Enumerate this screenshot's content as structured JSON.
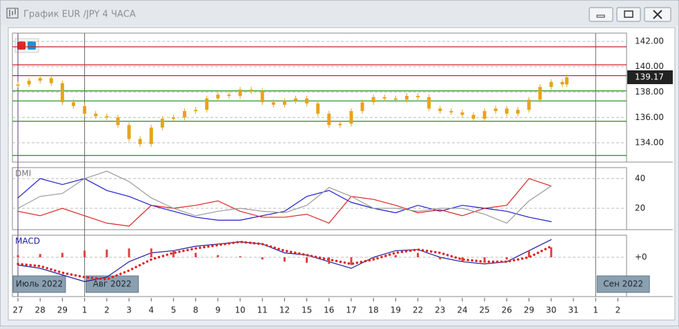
{
  "window": {
    "title": "График EUR /JPY  4 ЧАСА"
  },
  "x_axis": {
    "categories": [
      "27",
      "28",
      "29",
      "1",
      "2",
      "3",
      "4",
      "5",
      "8",
      "9",
      "10",
      "11",
      "12",
      "15",
      "16",
      "17",
      "18",
      "19",
      "22",
      "23",
      "24",
      "25",
      "26",
      "29",
      "30",
      "31",
      "1",
      "2"
    ],
    "months": [
      {
        "label": "Июль 2022",
        "index": 0
      },
      {
        "label": "Авг 2022",
        "index": 3
      },
      {
        "label": "Сен 2022",
        "index": 26
      }
    ]
  },
  "chart_data": [
    {
      "type": "candlestick",
      "color": "#e5a51a",
      "last_price": 139.17,
      "x": [
        0,
        0.5,
        1,
        1.5,
        2,
        2.5,
        3,
        3.5,
        4,
        4.5,
        5,
        5.5,
        6,
        6.5,
        7,
        7.5,
        8,
        8.5,
        9,
        9.5,
        10,
        10.5,
        11,
        11.5,
        12,
        12.5,
        13,
        13.5,
        14,
        14.5,
        15,
        15.5,
        16,
        16.5,
        17,
        17.5,
        18,
        18.5,
        19,
        19.5,
        20,
        20.5,
        21,
        21.5,
        22,
        22.5,
        23,
        23.5,
        24,
        24.5,
        24.7
      ],
      "values": [
        138.6,
        138.9,
        139.1,
        138.7,
        137.2,
        136.9,
        136.3,
        136.1,
        136.0,
        135.4,
        134.3,
        133.9,
        135.2,
        135.9,
        136.0,
        136.5,
        136.6,
        137.5,
        137.8,
        137.7,
        138.2,
        138.1,
        137.2,
        137.0,
        137.3,
        137.5,
        137.1,
        136.3,
        135.4,
        135.5,
        136.5,
        137.2,
        137.6,
        137.5,
        137.4,
        137.7,
        137.6,
        136.7,
        136.5,
        136.4,
        136.2,
        135.9,
        136.5,
        136.7,
        136.3,
        136.6,
        137.4,
        138.4,
        138.8,
        138.6,
        139.17
      ],
      "ylim": [
        132.48,
        142.65
      ],
      "yticks": [
        {
          "value": 142,
          "label": "142.00"
        },
        {
          "value": 140,
          "label": "140.00"
        },
        {
          "value": 138,
          "label": "138.00"
        },
        {
          "value": 136,
          "label": "136.00"
        },
        {
          "value": 134,
          "label": "134.00"
        }
      ],
      "levels": [
        {
          "value": 141.57,
          "color": "#cc2222"
        },
        {
          "value": 140.15,
          "color": "#cc2222"
        },
        {
          "value": 139.3,
          "color": "#cc2222"
        },
        {
          "value": 138.1,
          "color": "#2a9a2a"
        },
        {
          "value": 137.3,
          "color": "#2a9a2a"
        },
        {
          "value": 135.7,
          "color": "#2a9a2a"
        },
        {
          "value": 133.0,
          "color": "#2a9a2a"
        }
      ]
    },
    {
      "type": "line",
      "title": "DMI",
      "ylim": [
        5.6,
        47.4
      ],
      "yticks": [
        40,
        20
      ],
      "x": [
        0,
        1,
        2,
        3,
        4,
        5,
        6,
        7,
        8,
        9,
        10,
        11,
        12,
        13,
        14,
        15,
        16,
        17,
        18,
        19,
        20,
        21,
        22,
        23,
        24
      ],
      "series": [
        {
          "color": "#1a1acc",
          "values": [
            27,
            40,
            36,
            40,
            32,
            28,
            22,
            18,
            14,
            12,
            12,
            15,
            18,
            28,
            32,
            24,
            20,
            17,
            22,
            18,
            22,
            20,
            18,
            14,
            11
          ]
        },
        {
          "color": "#dd2222",
          "values": [
            18,
            15,
            20,
            15,
            10,
            8,
            22,
            20,
            22,
            25,
            18,
            14,
            14,
            16,
            10,
            28,
            26,
            22,
            17,
            19,
            15,
            20,
            22,
            40,
            35
          ]
        },
        {
          "color": "#999999",
          "values": [
            20,
            28,
            30,
            40,
            45,
            38,
            27,
            20,
            15,
            18,
            20,
            18,
            17,
            22,
            34,
            28,
            20,
            20,
            18,
            20,
            20,
            16,
            10,
            25,
            35
          ]
        }
      ]
    },
    {
      "type": "macd",
      "title": "MACD",
      "ylim": [
        -1.78,
        1.0
      ],
      "yticks": [
        {
          "value": 0,
          "label": "+0"
        }
      ],
      "x": [
        0,
        1,
        2,
        3,
        4,
        5,
        6,
        7,
        8,
        9,
        10,
        11,
        12,
        13,
        14,
        15,
        16,
        17,
        18,
        19,
        20,
        21,
        22,
        23,
        24
      ],
      "series": [
        {
          "color": "#1a1a99",
          "values": [
            -0.35,
            -0.5,
            -0.8,
            -1.1,
            -0.9,
            -0.2,
            0.2,
            0.3,
            0.5,
            0.6,
            0.7,
            0.6,
            0.2,
            0.1,
            -0.2,
            -0.5,
            0.0,
            0.3,
            0.35,
            0.0,
            -0.2,
            -0.3,
            -0.2,
            0.3,
            0.8
          ]
        },
        {
          "color": "#dd2222",
          "values": [
            -0.3,
            -0.4,
            -0.7,
            -0.9,
            -1.0,
            -0.6,
            -0.1,
            0.2,
            0.4,
            0.55,
            0.7,
            0.6,
            0.3,
            0.1,
            -0.1,
            -0.3,
            -0.1,
            0.2,
            0.35,
            0.2,
            -0.1,
            -0.2,
            -0.2,
            0.0,
            0.5
          ]
        },
        {
          "color": "#e04040",
          "values": [
            0.1,
            0.15,
            0.2,
            0.3,
            0.35,
            0.4,
            0.4,
            0.3,
            0.2,
            0.1,
            0.05,
            -0.1,
            -0.2,
            -0.25,
            -0.3,
            -0.35,
            -0.1,
            0.1,
            0.2,
            -0.1,
            -0.2,
            -0.25,
            -0.1,
            0.3,
            0.45
          ]
        }
      ]
    }
  ]
}
